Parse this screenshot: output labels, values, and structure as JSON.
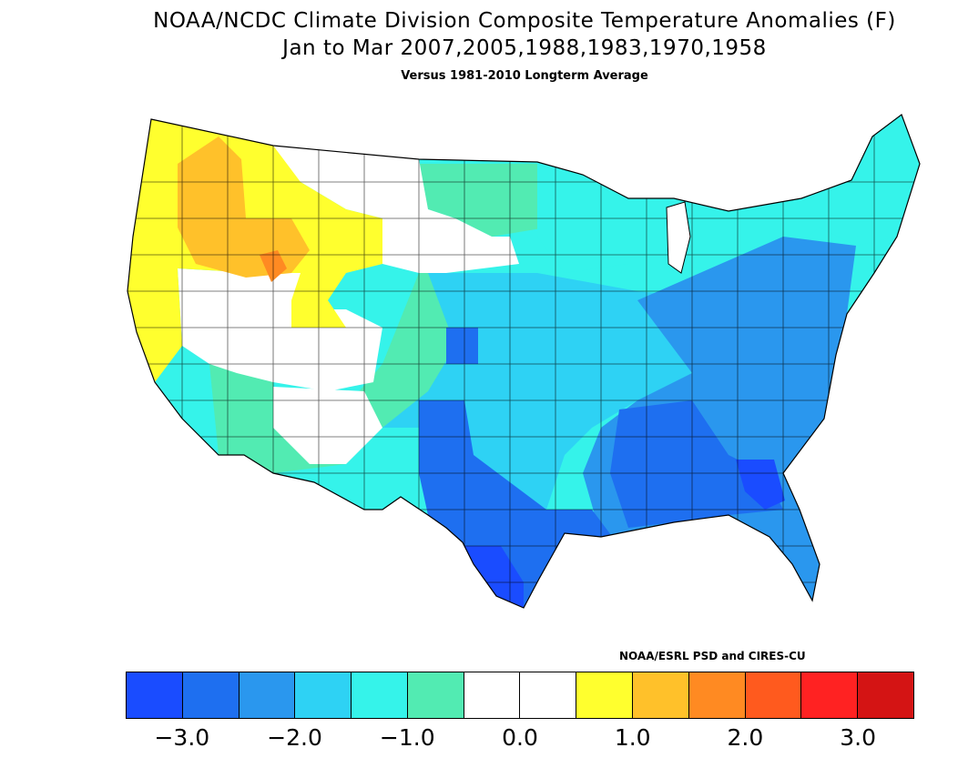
{
  "title": {
    "line1": "NOAA/NCDC Climate Division Composite Temperature Anomalies (F)",
    "line2": "Jan to Mar  2007,2005,1988,1983,1970,1958",
    "line3": "Versus 1981-2010 Longterm Average"
  },
  "credit": "NOAA/ESRL PSD and CIRES-CU",
  "legend": {
    "colors": [
      "#1a4cff",
      "#1e6ff0",
      "#2a97ee",
      "#2ed2f4",
      "#35f3ea",
      "#52ebb2",
      "#ffffff",
      "#ffffff",
      "#ffff2e",
      "#ffc12a",
      "#ff8a22",
      "#ff5a1e",
      "#ff2222",
      "#d41414"
    ],
    "ticks": [
      "−3.0",
      "−2.0",
      "−1.0",
      "0.0",
      "1.0",
      "2.0",
      "3.0"
    ]
  },
  "map_regions": [
    {
      "name": "pacific-northwest",
      "anomaly": "0.5 to 1.0",
      "color": "#ffff2e"
    },
    {
      "name": "idaho-interior",
      "anomaly": "1.0 to 1.5",
      "color": "#ffc12a"
    },
    {
      "name": "snake-river",
      "anomaly": "1.5 to 2.0",
      "color": "#ff8a22"
    },
    {
      "name": "great-basin-northern-plains",
      "anomaly": "-0.5 to 0.5",
      "color": "#ffffff"
    },
    {
      "name": "dakotas-colorado-southwest",
      "anomaly": "-1.0 to -0.5",
      "color": "#52ebb2"
    },
    {
      "name": "great-lakes-midwest-northeast",
      "anomaly": "-1.5 to -1.0",
      "color": "#35f3ea"
    },
    {
      "name": "plains-ohio-valley",
      "anomaly": "-2.0 to -1.5",
      "color": "#2ed2f4"
    },
    {
      "name": "southeast-mid-atlantic",
      "anomaly": "-2.5 to -2.0",
      "color": "#2a97ee"
    },
    {
      "name": "deep-south-west-texas",
      "anomaly": "-3.0 to -2.5",
      "color": "#1e6ff0"
    },
    {
      "name": "south-texas-georgia-coast",
      "anomaly": "-3.5 to -3.0",
      "color": "#1a4cff"
    }
  ]
}
